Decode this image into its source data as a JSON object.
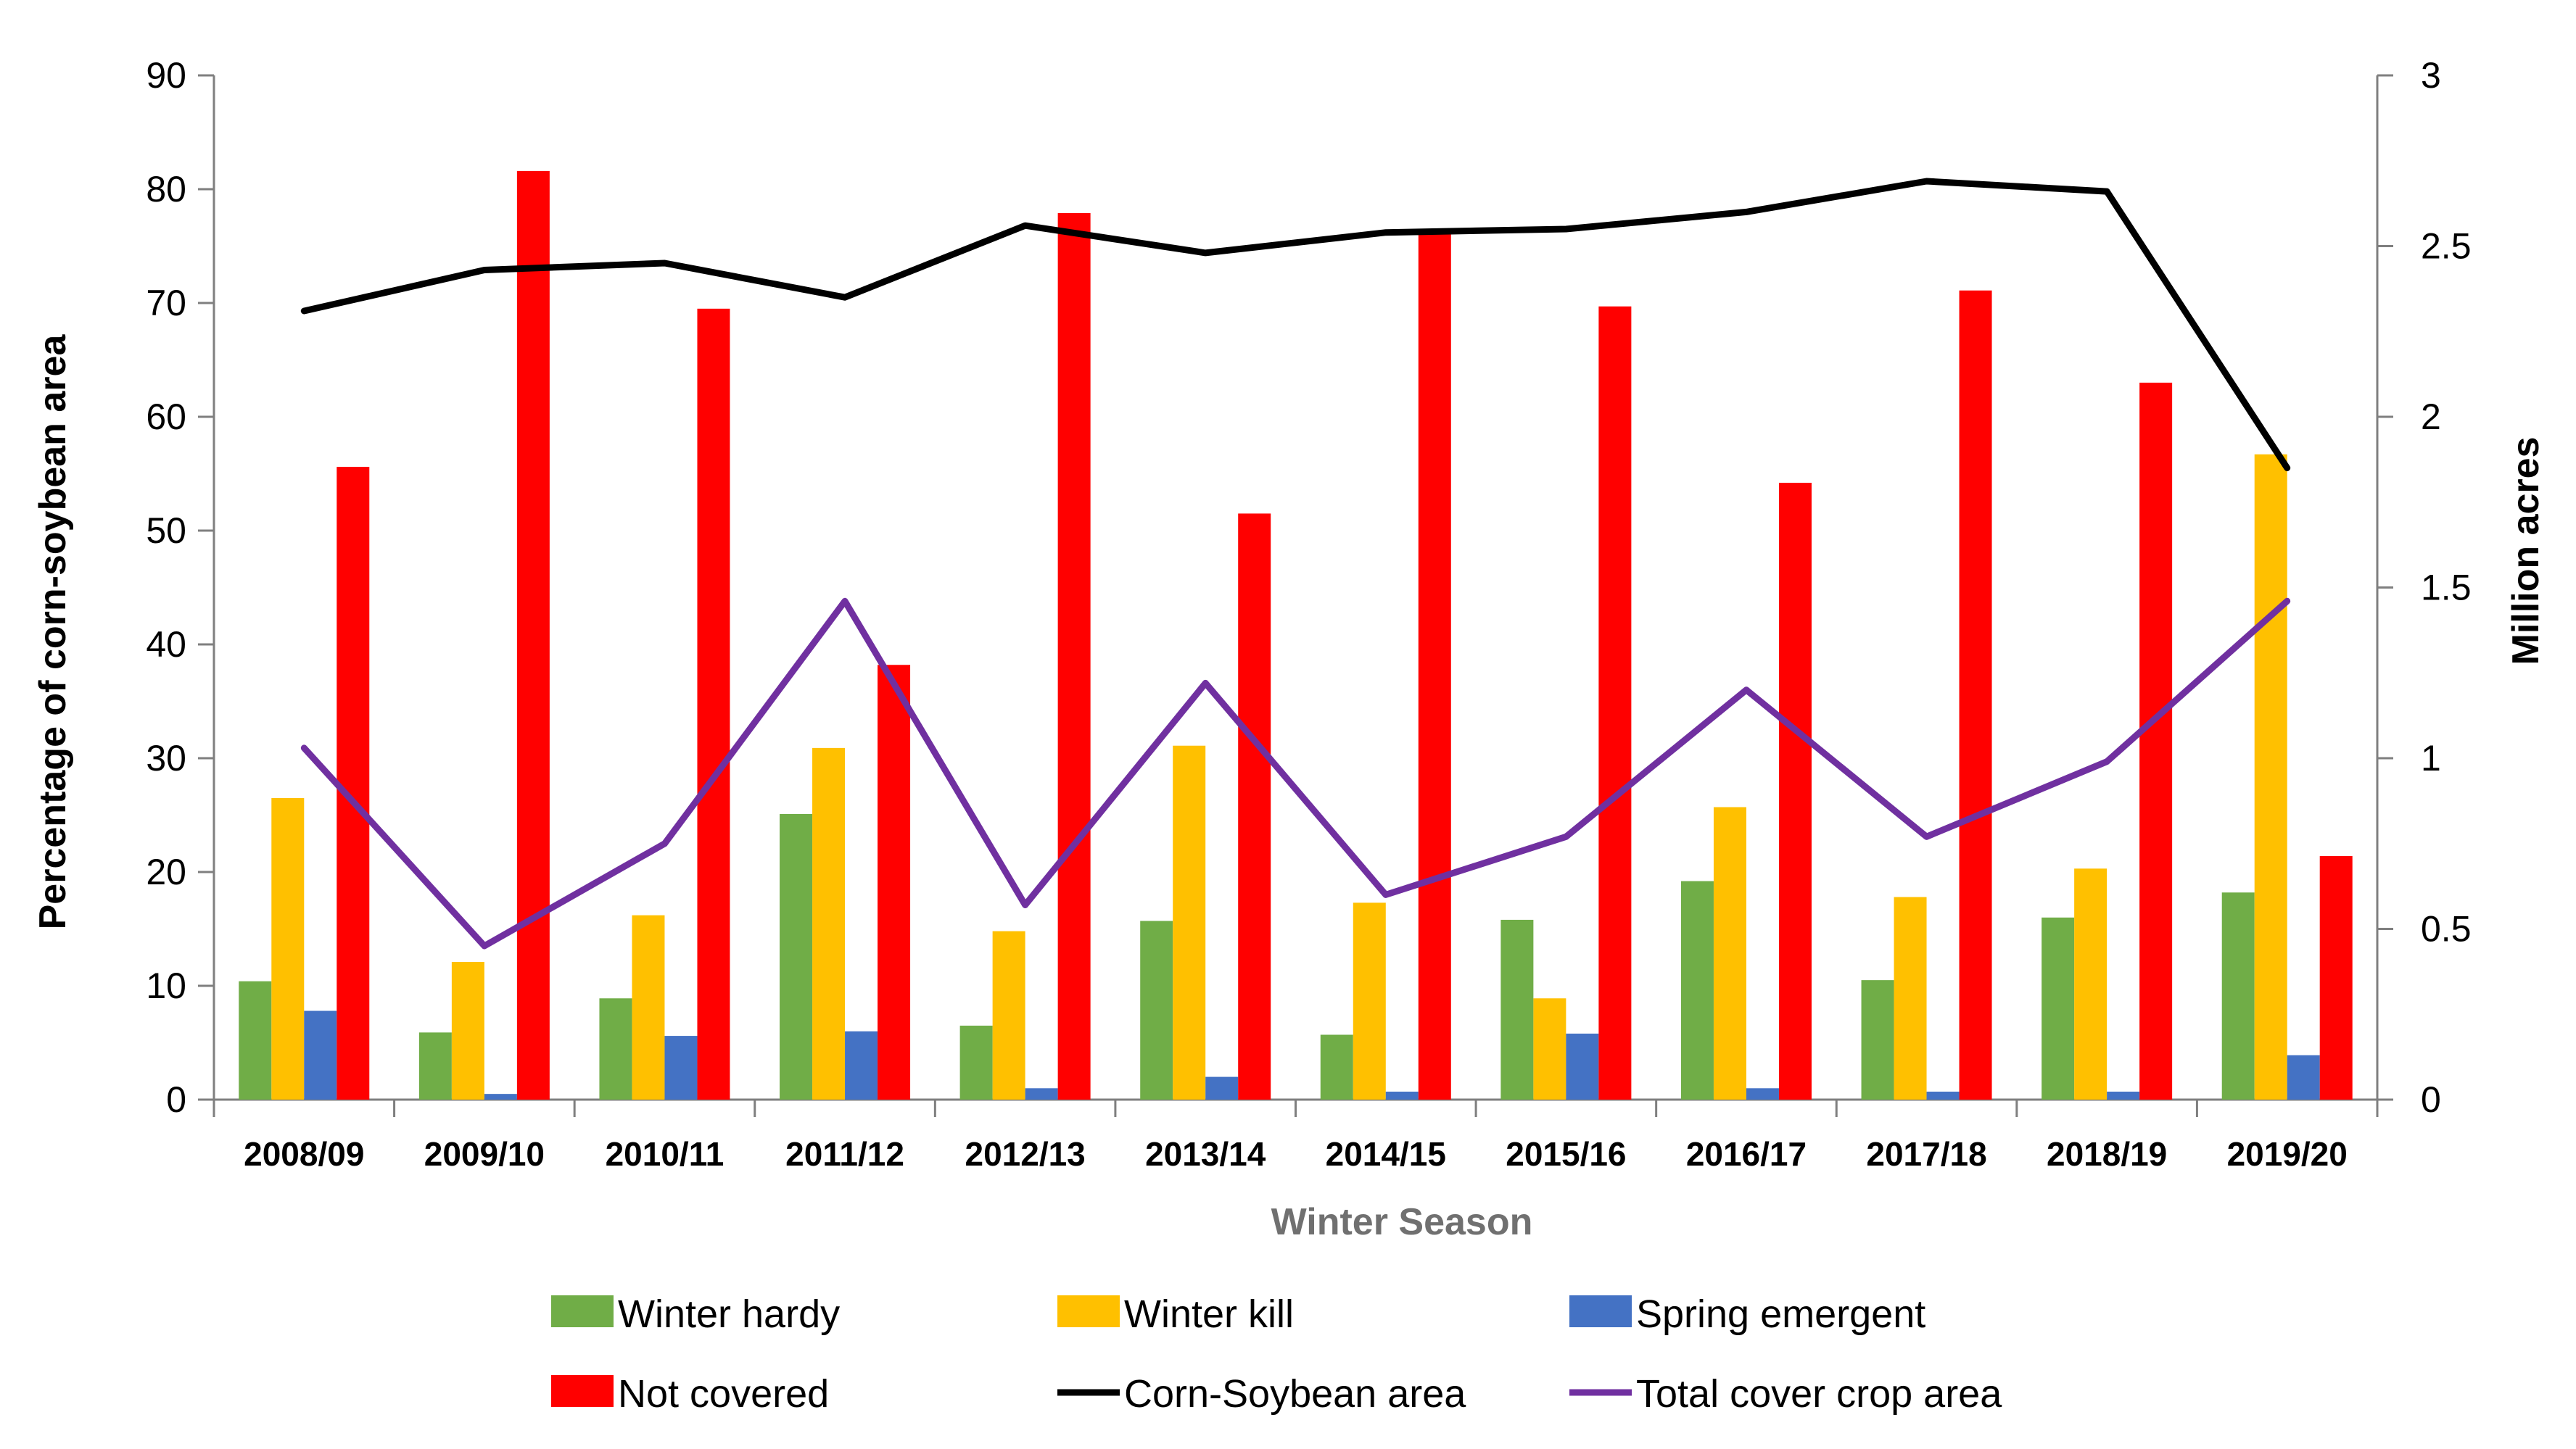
{
  "chart_data": {
    "type": "bar",
    "xlabel": "Winter Season",
    "ylabel": "Percentage of corn-soybean area",
    "y2label": "Million acres",
    "ylim": [
      0,
      90
    ],
    "y2lim": [
      0,
      3
    ],
    "yticks": [
      "0",
      "10",
      "20",
      "30",
      "40",
      "50",
      "60",
      "70",
      "80",
      "90"
    ],
    "y2ticks": [
      "0",
      "0.5",
      "1",
      "1.5",
      "2",
      "2.5",
      "3"
    ],
    "categories": [
      "2008/09",
      "2009/10",
      "2010/11",
      "2011/12",
      "2012/13",
      "2013/14",
      "2014/15",
      "2015/16",
      "2016/17",
      "2017/18",
      "2018/19",
      "2019/20"
    ],
    "series": [
      {
        "name": "Winter hardy",
        "type": "bar",
        "color": "#70AD47",
        "values": [
          10.4,
          5.9,
          8.9,
          25.1,
          6.5,
          15.7,
          5.7,
          15.8,
          19.2,
          10.5,
          16.0,
          18.2
        ]
      },
      {
        "name": "Winter kill",
        "type": "bar",
        "color": "#FFC000",
        "values": [
          26.5,
          12.1,
          16.2,
          30.9,
          14.8,
          31.1,
          17.3,
          8.9,
          25.7,
          17.8,
          20.3,
          56.7
        ]
      },
      {
        "name": "Spring emergent",
        "type": "bar",
        "color": "#4472C4",
        "values": [
          7.8,
          0.5,
          5.6,
          6.0,
          1.0,
          2.0,
          0.7,
          5.8,
          1.0,
          0.7,
          0.7,
          3.9
        ]
      },
      {
        "name": "Not covered",
        "type": "bar",
        "color": "#FF0000",
        "values": [
          55.6,
          81.6,
          69.5,
          38.2,
          77.9,
          51.5,
          76.4,
          69.7,
          54.2,
          71.1,
          63.0,
          21.4
        ]
      },
      {
        "name": "Corn-Soybean area",
        "type": "line",
        "axis": "y2",
        "color": "#000000",
        "values": [
          2.31,
          2.43,
          2.45,
          2.35,
          2.56,
          2.48,
          2.54,
          2.55,
          2.6,
          2.69,
          2.66,
          1.85
        ]
      },
      {
        "name": "Total cover crop area",
        "type": "line",
        "axis": "y2",
        "color": "#7030A0",
        "values": [
          1.03,
          0.45,
          0.75,
          1.46,
          0.57,
          1.22,
          0.6,
          0.77,
          1.2,
          0.77,
          0.99,
          1.46
        ]
      }
    ],
    "legend": [
      {
        "label": "Winter hardy",
        "kind": "box",
        "color": "#70AD47"
      },
      {
        "label": "Winter kill",
        "kind": "box",
        "color": "#FFC000"
      },
      {
        "label": "Spring emergent",
        "kind": "box",
        "color": "#4472C4"
      },
      {
        "label": "Not covered",
        "kind": "box",
        "color": "#FF0000"
      },
      {
        "label": "Corn-Soybean area",
        "kind": "line",
        "color": "#000000"
      },
      {
        "label": "Total cover crop area",
        "kind": "line",
        "color": "#7030A0"
      }
    ],
    "legend_position": "bottom"
  }
}
